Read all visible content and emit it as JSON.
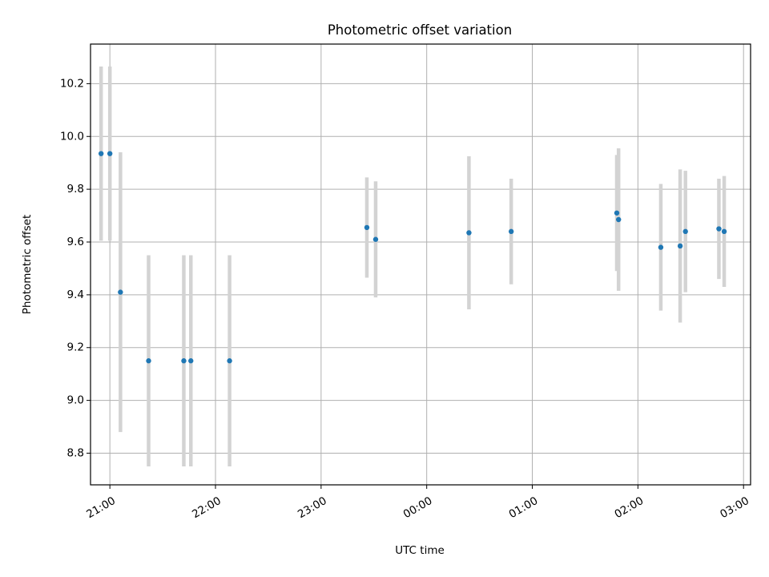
{
  "chart_data": {
    "type": "scatter",
    "title": "Photometric offset variation",
    "xlabel": "UTC time",
    "ylabel": "Photometric offset",
    "x_axis_kind": "time",
    "xlim": [
      "20:49",
      "27:04"
    ],
    "ylim": [
      8.68,
      10.35
    ],
    "grid": true,
    "x_ticks": [
      {
        "value": "21:00",
        "label": "21:00"
      },
      {
        "value": "22:00",
        "label": "22:00"
      },
      {
        "value": "23:00",
        "label": "23:00"
      },
      {
        "value": "24:00",
        "label": "00:00"
      },
      {
        "value": "25:00",
        "label": "01:00"
      },
      {
        "value": "26:00",
        "label": "02:00"
      },
      {
        "value": "27:00",
        "label": "03:00"
      }
    ],
    "y_ticks": [
      8.8,
      9.0,
      9.2,
      9.4,
      9.6,
      9.8,
      10.0,
      10.2
    ],
    "y_tick_labels": [
      "8.8",
      "9.0",
      "9.2",
      "9.4",
      "9.6",
      "9.8",
      "10.0",
      "10.2"
    ],
    "point_color": "#1f77b4",
    "errorbar_color": "#d3d3d3",
    "points": [
      {
        "time": "20:55",
        "y": 9.935,
        "err": 0.33
      },
      {
        "time": "21:00",
        "y": 9.935,
        "err": 0.33
      },
      {
        "time": "21:06",
        "y": 9.41,
        "err": 0.53
      },
      {
        "time": "21:22",
        "y": 9.15,
        "err": 0.4
      },
      {
        "time": "21:42",
        "y": 9.15,
        "err": 0.4
      },
      {
        "time": "21:46",
        "y": 9.15,
        "err": 0.4
      },
      {
        "time": "22:08",
        "y": 9.15,
        "err": 0.4
      },
      {
        "time": "23:26",
        "y": 9.655,
        "err": 0.19
      },
      {
        "time": "23:31",
        "y": 9.61,
        "err": 0.22
      },
      {
        "time": "24:24",
        "y": 9.635,
        "err": 0.29
      },
      {
        "time": "24:48",
        "y": 9.64,
        "err": 0.2
      },
      {
        "time": "25:48",
        "y": 9.71,
        "err": 0.22
      },
      {
        "time": "25:49",
        "y": 9.685,
        "err": 0.27
      },
      {
        "time": "26:13",
        "y": 9.58,
        "err": 0.24
      },
      {
        "time": "26:24",
        "y": 9.585,
        "err": 0.29
      },
      {
        "time": "26:27",
        "y": 9.64,
        "err": 0.23
      },
      {
        "time": "26:46",
        "y": 9.65,
        "err": 0.19
      },
      {
        "time": "26:49",
        "y": 9.64,
        "err": 0.21
      }
    ]
  }
}
